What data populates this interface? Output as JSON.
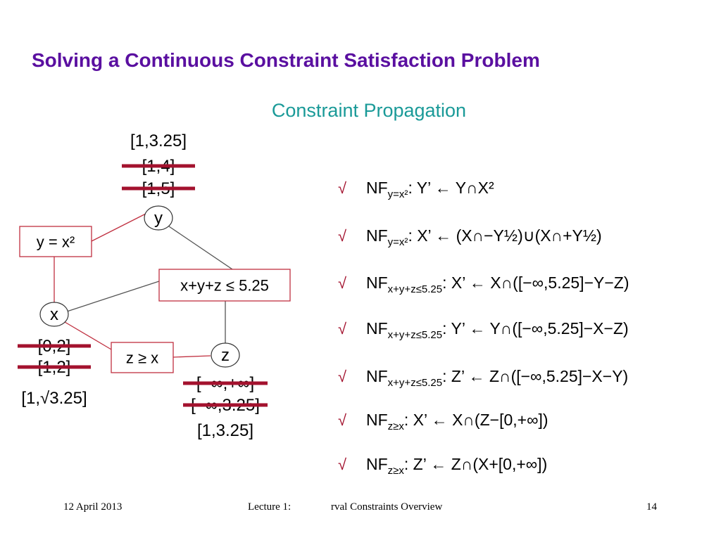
{
  "title": "Solving a Continuous Constraint Satisfaction Problem",
  "subtitle": "Constraint Propagation",
  "nodes": [
    {
      "label": "y",
      "domains": [
        {
          "text": "[1,3.25]",
          "struck": false
        },
        {
          "text": "[1,4]",
          "struck": true
        },
        {
          "text": "[1,5]",
          "struck": true
        }
      ]
    },
    {
      "label": "x",
      "domains": [
        {
          "text": "[0,2]",
          "struck": true
        },
        {
          "text": "[1,2]",
          "struck": true
        },
        {
          "text": "[1,√3.25]",
          "struck": false
        }
      ]
    },
    {
      "label": "z",
      "domains": [
        {
          "text": "[−∞,+∞]",
          "struck": true
        },
        {
          "text": "[−∞,3.25]",
          "struck": true
        },
        {
          "text": "[1,3.25]",
          "struck": false
        }
      ]
    }
  ],
  "constraints": [
    "y = x²",
    "x+y+z ≤ 5.25",
    "z ≥ x"
  ],
  "rules": [
    {
      "check": "√",
      "nf": "NF",
      "sub": "y=x²",
      "rhs": ": Y’ ← Y∩X²"
    },
    {
      "check": "√",
      "nf": "NF",
      "sub": "y=x²",
      "rhs": ": X’ ← (X∩−Y½)∪(X∩+Y½)"
    },
    {
      "check": "√",
      "nf": "NF",
      "sub": "x+y+z≤5.25",
      "rhs": ": X’ ← X∩([−∞,5.25]−Y−Z)"
    },
    {
      "check": "√",
      "nf": "NF",
      "sub": "x+y+z≤5.25",
      "rhs": ": Y’ ← Y∩([−∞,5.25]−X−Z)"
    },
    {
      "check": "√",
      "nf": "NF",
      "sub": "x+y+z≤5.25",
      "rhs": ": Z’ ← Z∩([−∞,5.25]−X−Y)"
    },
    {
      "check": "√",
      "nf": "NF",
      "sub": "z≥x",
      "rhs": ": X’ ← X∩(Z−[0,+∞])"
    },
    {
      "check": "√",
      "nf": "NF",
      "sub": "z≥x",
      "rhs": ": Z’ ← Z∩(X+[0,+∞])"
    }
  ],
  "footer": {
    "date": "12 April 2013",
    "lecture": "Lecture 1:",
    "course": "rval Constraints Overview",
    "page": "14"
  }
}
